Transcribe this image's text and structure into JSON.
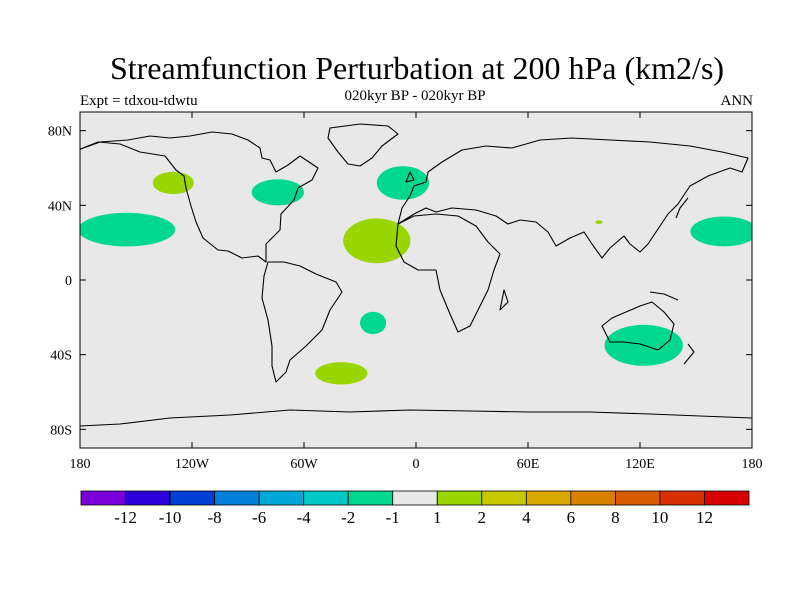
{
  "figure": {
    "title": "Streamfunction Perturbation at 200 hPa (km2/s)",
    "subtitle": "020kyr BP - 020kyr BP",
    "left_string": "Expt = tdxou-tdwtu",
    "right_string": "ANN"
  },
  "map": {
    "projection": "cylindrical-equidistant",
    "lon_range": [
      -180,
      180
    ],
    "lat_range": [
      -90,
      90
    ],
    "background_color": "#e8e8e8",
    "xticks": [
      {
        "lon": -180,
        "label": "180"
      },
      {
        "lon": -120,
        "label": "120W"
      },
      {
        "lon": -60,
        "label": "60W"
      },
      {
        "lon": 0,
        "label": "0"
      },
      {
        "lon": 60,
        "label": "60E"
      },
      {
        "lon": 120,
        "label": "120E"
      },
      {
        "lon": 180,
        "label": "180"
      }
    ],
    "yticks": [
      {
        "lat": 80,
        "label": "80N"
      },
      {
        "lat": 40,
        "label": "40N"
      },
      {
        "lat": 0,
        "label": "0"
      },
      {
        "lat": -40,
        "label": "40S"
      },
      {
        "lat": -80,
        "label": "80S"
      }
    ],
    "anomalies": [
      {
        "name": "north-pacific-west-coast",
        "sign": "negative",
        "color": "#00d890",
        "center": [
          -155,
          27
        ],
        "radius": [
          26,
          9
        ]
      },
      {
        "name": "northeast-pacific",
        "sign": "positive",
        "color": "#99d600",
        "center": [
          -130,
          52
        ],
        "radius": [
          11,
          6
        ]
      },
      {
        "name": "north-america-east",
        "sign": "negative",
        "color": "#00d890",
        "center": [
          -74,
          47
        ],
        "radius": [
          14,
          7
        ]
      },
      {
        "name": "western-europe",
        "sign": "negative",
        "color": "#00d890",
        "center": [
          -7,
          52
        ],
        "radius": [
          14,
          9
        ]
      },
      {
        "name": "tropical-atlantic",
        "sign": "positive",
        "color": "#99d600",
        "center": [
          -21,
          21
        ],
        "radius": [
          18,
          12
        ]
      },
      {
        "name": "south-atlantic",
        "sign": "negative",
        "color": "#00d890",
        "center": [
          -23,
          -23
        ],
        "radius": [
          7,
          6
        ]
      },
      {
        "name": "southern-ocean-atlantic",
        "sign": "positive",
        "color": "#99d600",
        "center": [
          -40,
          -50
        ],
        "radius": [
          14,
          6
        ]
      },
      {
        "name": "australia",
        "sign": "negative",
        "color": "#00d890",
        "center": [
          122,
          -35
        ],
        "radius": [
          21,
          11
        ]
      },
      {
        "name": "western-pacific",
        "sign": "negative",
        "color": "#00d890",
        "center": [
          165,
          26
        ],
        "radius": [
          18,
          8
        ]
      },
      {
        "name": "indian-ocean-dot",
        "sign": "positive",
        "color": "#99d600",
        "center": [
          98,
          31
        ],
        "radius": [
          2,
          1
        ]
      }
    ]
  },
  "colorbar": {
    "colors": [
      "#7a00d9",
      "#2b00d9",
      "#0040d4",
      "#0080d9",
      "#00a8d9",
      "#00c8c8",
      "#00d890",
      "#e8e8e8",
      "#99d600",
      "#c8c800",
      "#d9a800",
      "#d98000",
      "#d95c00",
      "#d93000",
      "#d90000"
    ],
    "labels": [
      "-12",
      "-10",
      "-8",
      "-6",
      "-4",
      "-2",
      "-1",
      "1",
      "2",
      "4",
      "6",
      "8",
      "10",
      "12"
    ]
  }
}
